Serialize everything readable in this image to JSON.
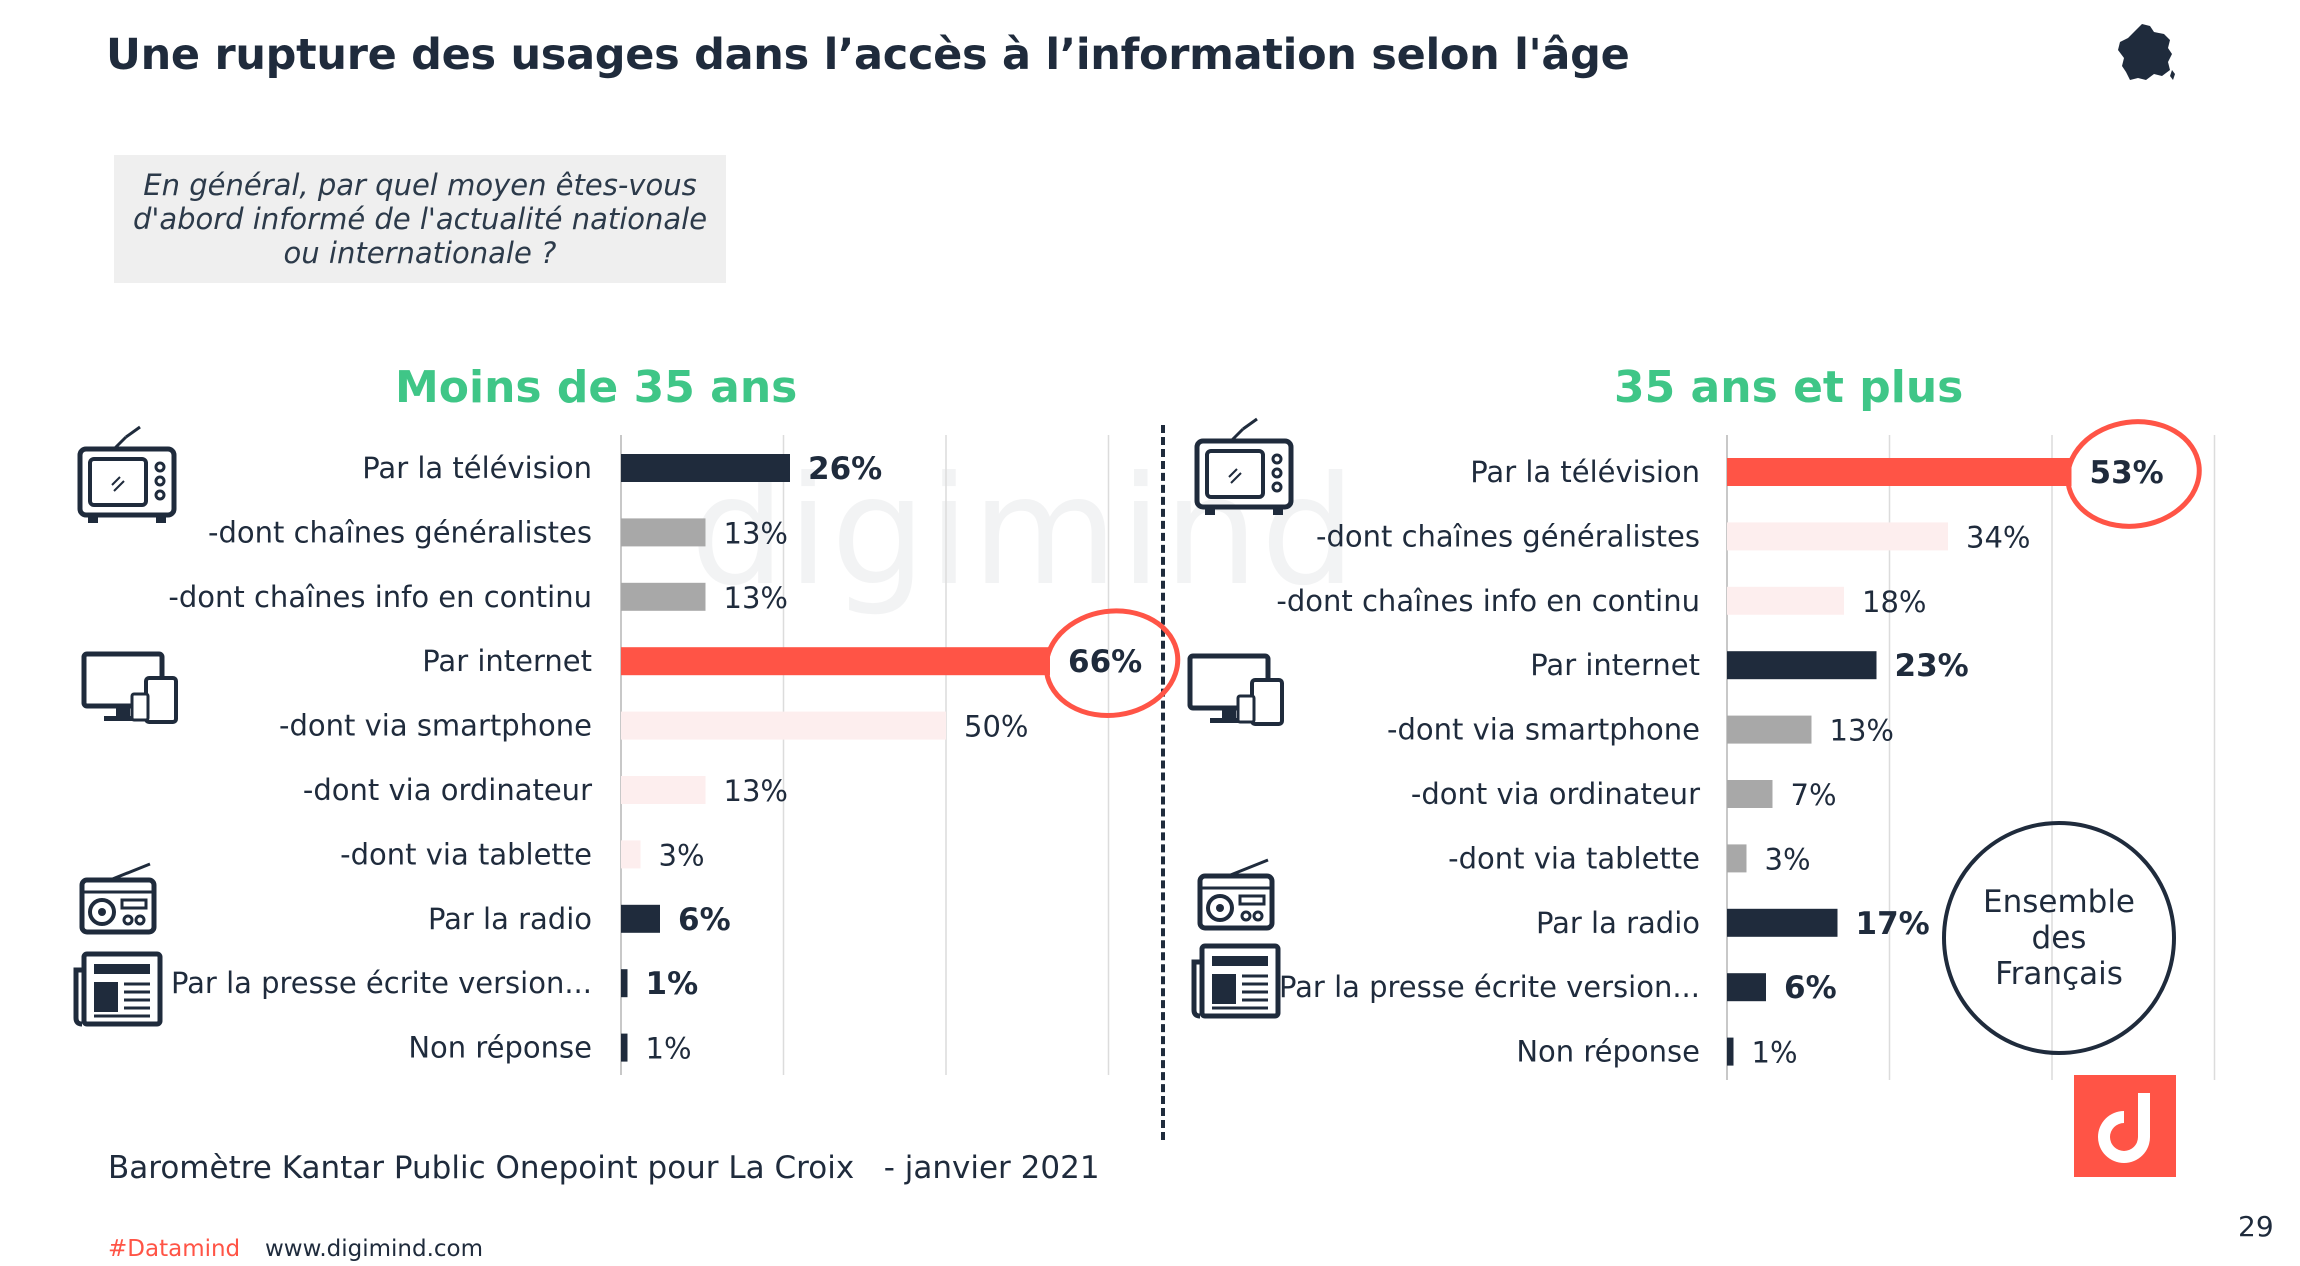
{
  "title": "Une rupture des usages dans l’accès à l’information selon l'âge",
  "question": "En général, par quel moyen êtes-vous d'abord informé de l'actualité nationale ou internationale ?",
  "source": "Baromètre Kantar Public Onepoint pour La Croix   - janvier 2021",
  "footer": {
    "hashtag": "#Datamind",
    "url": "www.digimind.com",
    "page": "29"
  },
  "ensemble_label": "Ensemble des Français",
  "watermark": "digimind",
  "colors": {
    "navy": "#1f2b3c",
    "coral": "#ff5446",
    "gray": "#a8a8a8",
    "pale": "#fdeeee",
    "green": "#3fc687"
  },
  "icons": [
    "france-map-icon",
    "television-icon",
    "computer-devices-icon",
    "radio-icon",
    "newspaper-icon",
    "digimind-logo-icon"
  ],
  "chart_data": [
    {
      "type": "bar",
      "orientation": "horizontal",
      "title": "Moins de 35 ans",
      "categories": [
        "Par la télévision",
        "-dont chaînes généralistes",
        "-dont chaînes info en continu",
        "Par internet",
        "-dont via smartphone",
        "-dont via ordinateur",
        "-dont via tablette",
        "Par la radio",
        "Par la presse écrite version...",
        "Non réponse"
      ],
      "values": [
        26,
        13,
        13,
        66,
        50,
        13,
        3,
        6,
        1,
        1
      ],
      "labels": [
        "26%",
        "13%",
        "13%",
        "66%",
        "50%",
        "13%",
        "3%",
        "6%",
        "1%",
        "1%"
      ],
      "bar_colors": [
        "#1f2b3c",
        "#a8a8a8",
        "#a8a8a8",
        "#ff5446",
        "#fdeeee",
        "#fdeeee",
        "#fdeeee",
        "#1f2b3c",
        "#1f2b3c",
        "#1f2b3c"
      ],
      "bold_labels": [
        true,
        false,
        false,
        true,
        false,
        false,
        false,
        true,
        true,
        false
      ],
      "highlight_index": 3,
      "xlim": [
        0,
        75
      ],
      "grid": true
    },
    {
      "type": "bar",
      "orientation": "horizontal",
      "title": "35 ans et plus",
      "categories": [
        "Par la télévision",
        "-dont chaînes généralistes",
        "-dont chaînes info en continu",
        "Par internet",
        "-dont via smartphone",
        "-dont via ordinateur",
        "-dont via tablette",
        "Par la radio",
        "Par la presse écrite version...",
        "Non réponse"
      ],
      "values": [
        53,
        34,
        18,
        23,
        13,
        7,
        3,
        17,
        6,
        1
      ],
      "labels": [
        "53%",
        "34%",
        "18%",
        "23%",
        "13%",
        "7%",
        "3%",
        "17%",
        "6%",
        "1%"
      ],
      "bar_colors": [
        "#ff5446",
        "#fdeeee",
        "#fdeeee",
        "#1f2b3c",
        "#a8a8a8",
        "#a8a8a8",
        "#a8a8a8",
        "#1f2b3c",
        "#1f2b3c",
        "#1f2b3c"
      ],
      "bold_labels": [
        true,
        false,
        false,
        true,
        false,
        false,
        false,
        true,
        true,
        false
      ],
      "highlight_index": 0,
      "xlim": [
        0,
        75
      ],
      "grid": true
    }
  ]
}
